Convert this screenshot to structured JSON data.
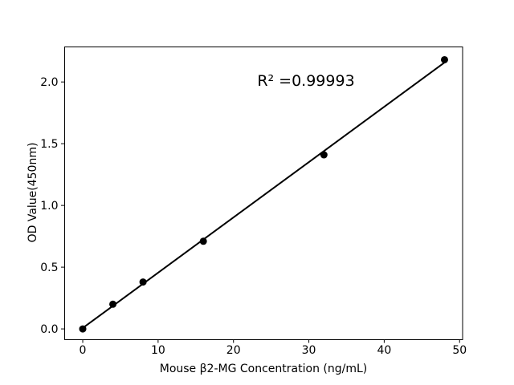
{
  "figure": {
    "background": "#ffffff"
  },
  "chart_data": {
    "type": "scatter",
    "title": "",
    "xlabel": "Mouse β2-MG Concentration (ng/mL)",
    "ylabel": "OD Value(450nm)",
    "x": [
      0,
      4,
      8,
      16,
      32,
      48
    ],
    "y": [
      0.0,
      0.2,
      0.38,
      0.71,
      1.41,
      2.18
    ],
    "fit_line": {
      "slope": 0.0448,
      "intercept": 0.007,
      "x_start": 0,
      "x_end": 48
    },
    "annotation": {
      "text": "R² =0.99993",
      "x": 29.7,
      "y": 2.0
    },
    "xlim": [
      -2.4,
      50.4
    ],
    "ylim": [
      -0.084,
      2.287
    ],
    "xticks": [
      0,
      10,
      20,
      30,
      40,
      50
    ],
    "xtick_labels": [
      "0",
      "10",
      "20",
      "30",
      "40",
      "50"
    ],
    "yticks": [
      0.0,
      0.5,
      1.0,
      1.5,
      2.0
    ],
    "ytick_labels": [
      "0.0",
      "0.5",
      "1.0",
      "1.5",
      "2.0"
    ],
    "grid": false,
    "legend": "none",
    "marker": "filled-circle",
    "marker_color": "#000000",
    "line_color": "#000000",
    "axis_color": "#000000"
  }
}
